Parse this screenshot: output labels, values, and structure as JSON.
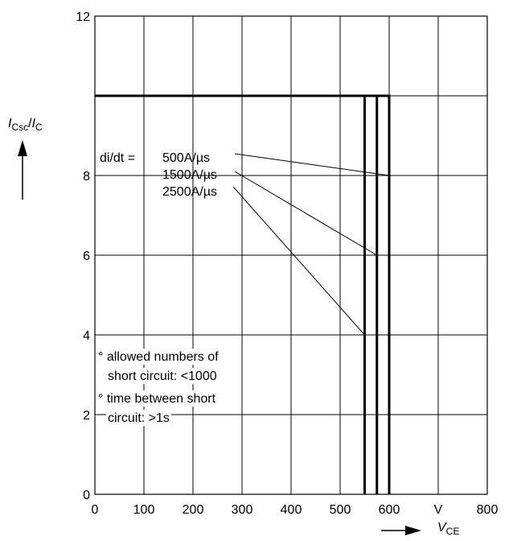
{
  "chart_data": {
    "type": "line",
    "title": "",
    "xlabel": "V",
    "xlabel_sub": "CE",
    "ylabel": "I",
    "ylabel_sub": "Csc",
    "ylabel_den": "I",
    "ylabel_den_sub": "C",
    "x_unit": "V",
    "xlim": [
      0,
      800
    ],
    "ylim": [
      0,
      12
    ],
    "grid": true,
    "x_ticks": [
      {
        "v": 0,
        "label": "0"
      },
      {
        "v": 100,
        "label": "100"
      },
      {
        "v": 200,
        "label": "200"
      },
      {
        "v": 300,
        "label": "300"
      },
      {
        "v": 400,
        "label": "400"
      },
      {
        "v": 500,
        "label": "500"
      },
      {
        "v": 600,
        "label": "600"
      },
      {
        "v": 800,
        "label": "800"
      }
    ],
    "y_ticks": [
      {
        "v": 0,
        "label": "0"
      },
      {
        "v": 2,
        "label": "2"
      },
      {
        "v": 4,
        "label": "4"
      },
      {
        "v": 6,
        "label": "6"
      },
      {
        "v": 8,
        "label": "8"
      },
      {
        "v": 12,
        "label": "12"
      }
    ],
    "series": [
      {
        "name": "500A/µs",
        "x": [
          0,
          600,
          600
        ],
        "y": [
          10,
          10,
          0
        ],
        "label_point": [
          600,
          8
        ]
      },
      {
        "name": "1500A/µs",
        "x": [
          0,
          575,
          575
        ],
        "y": [
          10,
          10,
          0
        ],
        "label_point": [
          575,
          6
        ]
      },
      {
        "name": "2500A/µs",
        "x": [
          0,
          550,
          550
        ],
        "y": [
          10,
          10,
          0
        ],
        "label_point": [
          550,
          4
        ]
      }
    ],
    "legend_prefix": "di/dt =",
    "annotations": [
      "° allowed numbers of",
      "short circuit: <1000",
      "° time between short",
      "circuit: >1s"
    ]
  }
}
